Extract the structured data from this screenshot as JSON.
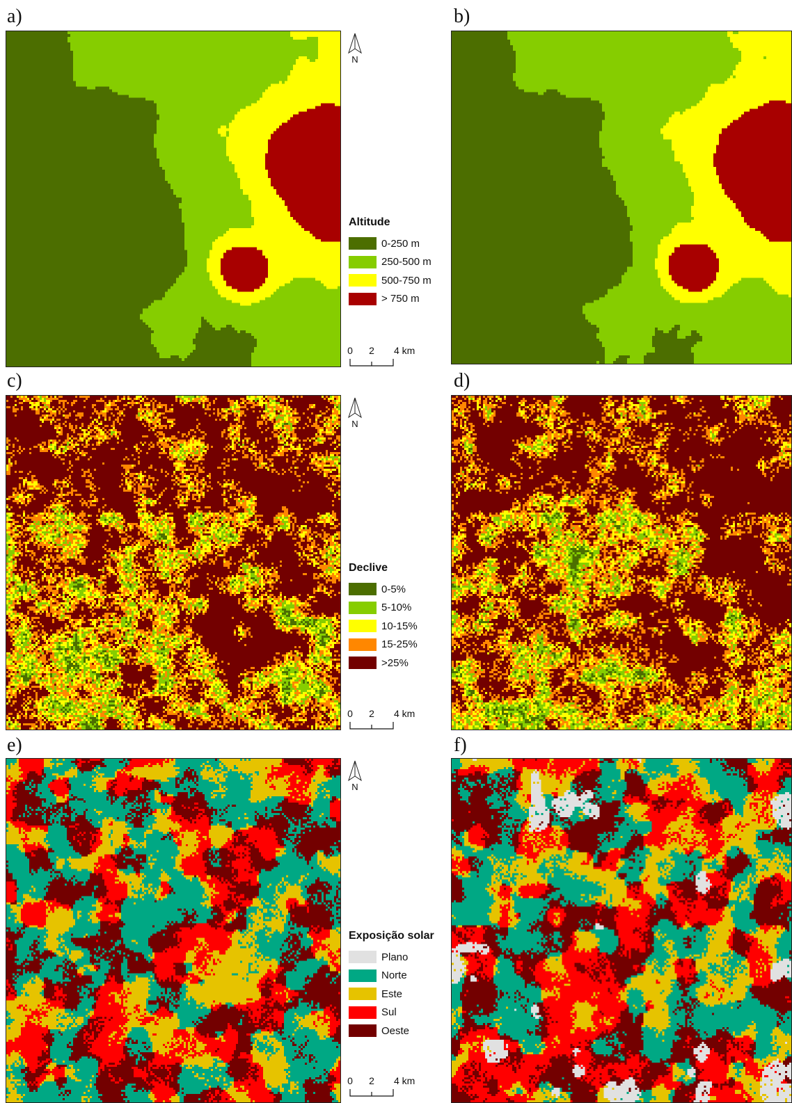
{
  "panels": [
    {
      "id": "a",
      "label": "a)",
      "theme": "altitude"
    },
    {
      "id": "b",
      "label": "b)",
      "theme": "altitude"
    },
    {
      "id": "c",
      "label": "c)",
      "theme": "slope"
    },
    {
      "id": "d",
      "label": "d)",
      "theme": "slope"
    },
    {
      "id": "e",
      "label": "e)",
      "theme": "aspect"
    },
    {
      "id": "f",
      "label": "f)",
      "theme": "aspect"
    }
  ],
  "north_label": "N",
  "legends": {
    "altitude": {
      "title": "Altitude",
      "items": [
        {
          "label": "0-250 m",
          "color": "#4c6e00"
        },
        {
          "label": "250-500 m",
          "color": "#86cd00"
        },
        {
          "label": "500-750 m",
          "color": "#ffff00"
        },
        {
          "label": "> 750 m",
          "color": "#a80000"
        }
      ]
    },
    "slope": {
      "title": "Declive",
      "items": [
        {
          "label": "0-5%",
          "color": "#4c6e00"
        },
        {
          "label": "5-10%",
          "color": "#86cd00"
        },
        {
          "label": "10-15%",
          "color": "#ffff00"
        },
        {
          "label": "15-25%",
          "color": "#ff8700"
        },
        {
          "label": ">25%",
          "color": "#730000"
        }
      ]
    },
    "aspect": {
      "title": "Exposição solar",
      "items": [
        {
          "label": "Plano",
          "color": "#e1e1e1"
        },
        {
          "label": "Norte",
          "color": "#00a884"
        },
        {
          "label": "Este",
          "color": "#e6c300"
        },
        {
          "label": "Sul",
          "color": "#ff0000"
        },
        {
          "label": "Oeste",
          "color": "#730000"
        }
      ]
    }
  },
  "scalebar": {
    "ticks": [
      "0",
      "2",
      "4 km"
    ]
  }
}
